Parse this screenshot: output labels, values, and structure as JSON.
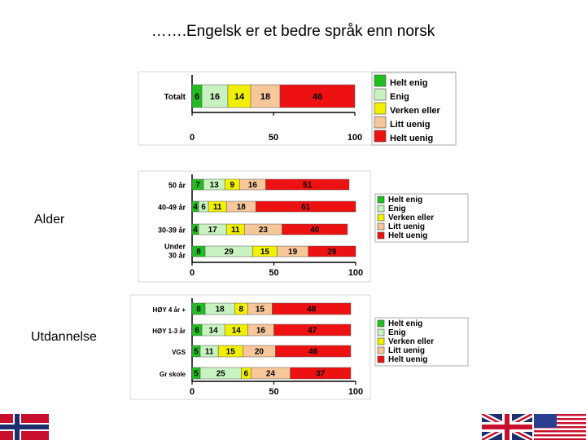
{
  "slide": {
    "title": "…….Engelsk er et bedre språk enn norsk",
    "label_alder": "Alder",
    "label_utdannelse": "Utdannelse"
  },
  "colors": {
    "Helt enig": "#1fbf1f",
    "Enig": "#c8f2c0",
    "Verken eller": "#f0f000",
    "Litt uenig": "#f7c79a",
    "Helt uenig": "#ee1111"
  },
  "chart_data": [
    {
      "type": "bar",
      "stacked": true,
      "orientation": "horizontal",
      "categories": [
        "Totalt"
      ],
      "series": [
        {
          "name": "Helt enig",
          "values": [
            6
          ]
        },
        {
          "name": "Enig",
          "values": [
            16
          ]
        },
        {
          "name": "Verken eller",
          "values": [
            14
          ]
        },
        {
          "name": "Litt uenig",
          "values": [
            18
          ]
        },
        {
          "name": "Helt uenig",
          "values": [
            46
          ]
        }
      ],
      "xticks": [
        "0",
        "50",
        "100"
      ],
      "xlim": [
        0,
        100
      ],
      "legend": "right"
    },
    {
      "type": "bar",
      "stacked": true,
      "orientation": "horizontal",
      "categories": [
        "50 år",
        "40-49 år",
        "30-39 år",
        "Under 30 år"
      ],
      "series": [
        {
          "name": "Helt enig",
          "values": [
            7,
            4,
            4,
            8
          ]
        },
        {
          "name": "Enig",
          "values": [
            13,
            6,
            17,
            29
          ]
        },
        {
          "name": "Verken eller",
          "values": [
            9,
            11,
            11,
            15
          ]
        },
        {
          "name": "Litt uenig",
          "values": [
            16,
            18,
            23,
            19
          ]
        },
        {
          "name": "Helt uenig",
          "values": [
            51,
            61,
            40,
            29
          ]
        }
      ],
      "xticks": [
        "0",
        "50",
        "100"
      ],
      "xlim": [
        0,
        100
      ],
      "legend": "right"
    },
    {
      "type": "bar",
      "stacked": true,
      "orientation": "horizontal",
      "categories": [
        "HØY 4 år +",
        "HØY 1-3 år",
        "VGS",
        "Gr skole"
      ],
      "series": [
        {
          "name": "Helt enig",
          "values": [
            8,
            6,
            5,
            5
          ]
        },
        {
          "name": "Enig",
          "values": [
            18,
            14,
            11,
            25
          ]
        },
        {
          "name": "Verken eller",
          "values": [
            8,
            14,
            15,
            6
          ]
        },
        {
          "name": "Litt uenig",
          "values": [
            15,
            16,
            20,
            24
          ]
        },
        {
          "name": "Helt uenig",
          "values": [
            48,
            47,
            46,
            37
          ]
        }
      ],
      "xticks": [
        "0",
        "50",
        "100"
      ],
      "xlim": [
        0,
        100
      ],
      "legend": "right"
    }
  ]
}
